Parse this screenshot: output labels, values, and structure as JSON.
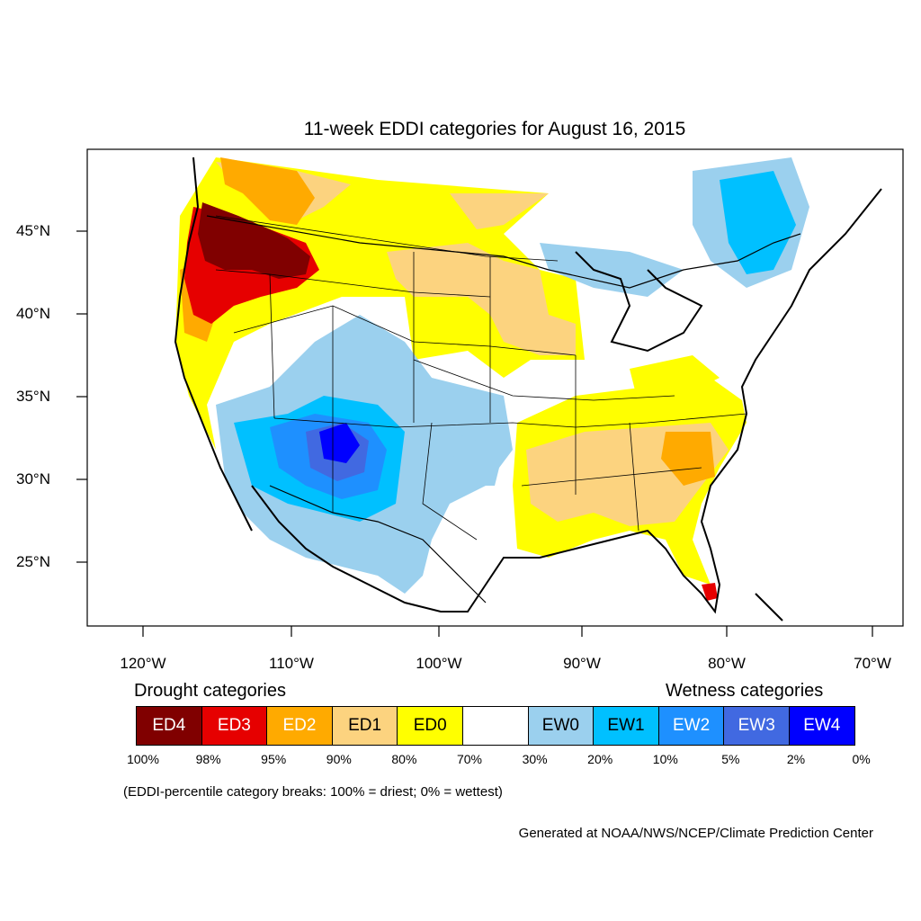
{
  "title": "11-week EDDI categories for August 16, 2015",
  "axes": {
    "lon_ticks": [
      "120°W",
      "110°W",
      "100°W",
      "90°W",
      "80°W",
      "70°W"
    ],
    "lat_ticks": [
      "45°N",
      "40°N",
      "35°N",
      "30°N",
      "25°N"
    ]
  },
  "legend": {
    "drought_heading": "Drought categories",
    "wetness_heading": "Wetness categories",
    "categories": [
      {
        "label": "ED4",
        "color": "#800000",
        "text_color": "#ffffff"
      },
      {
        "label": "ED3",
        "color": "#e60000",
        "text_color": "#ffffff"
      },
      {
        "label": "ED2",
        "color": "#ffaa00",
        "text_color": "#ffffff"
      },
      {
        "label": "ED1",
        "color": "#fcd37f",
        "text_color": "#000000"
      },
      {
        "label": "ED0",
        "color": "#ffff00",
        "text_color": "#000000"
      },
      {
        "label": "",
        "color": "#ffffff",
        "text_color": "#000000"
      },
      {
        "label": "EW0",
        "color": "#9bd0ee",
        "text_color": "#000000"
      },
      {
        "label": "EW1",
        "color": "#00c0ff",
        "text_color": "#000000"
      },
      {
        "label": "EW2",
        "color": "#1e90ff",
        "text_color": "#ffffff"
      },
      {
        "label": "EW3",
        "color": "#4169e1",
        "text_color": "#ffffff"
      },
      {
        "label": "EW4",
        "color": "#0000ff",
        "text_color": "#ffffff"
      }
    ],
    "breaks": [
      "100%",
      "98%",
      "95%",
      "90%",
      "80%",
      "70%",
      "30%",
      "20%",
      "10%",
      "5%",
      "2%",
      "0%"
    ],
    "note": "(EDDI-percentile category breaks: 100% = driest; 0% = wettest)"
  },
  "credit": "Generated at NOAA/NWS/NCEP/Climate Prediction Center"
}
